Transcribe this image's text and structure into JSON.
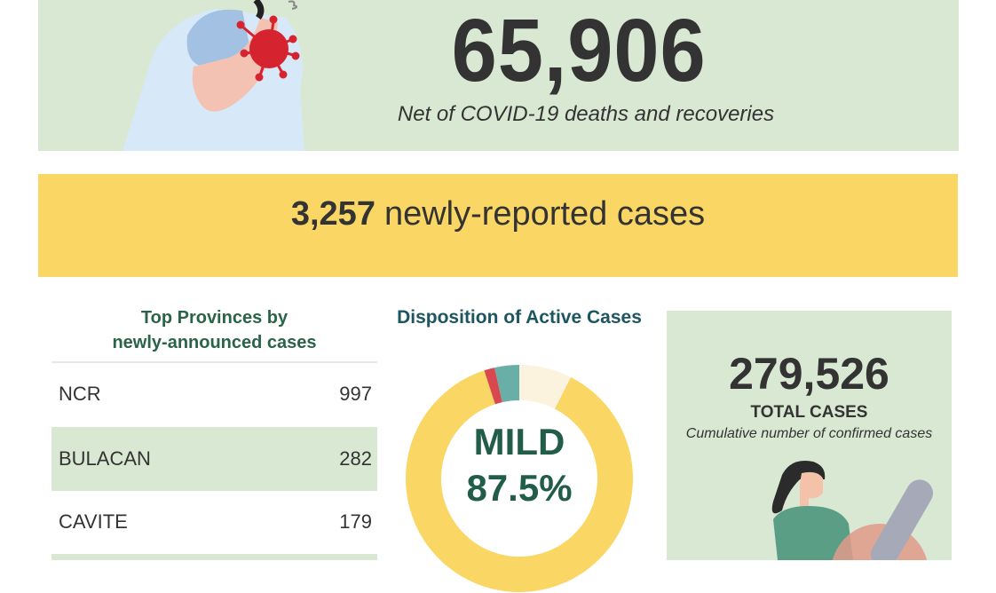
{
  "header": {
    "active_cases_value": "65,906",
    "active_cases_caption": "Net of COVID-19 deaths and recoveries"
  },
  "banner": {
    "new_cases_value": "3,257",
    "new_cases_label": "newly-reported cases"
  },
  "provinces": {
    "title_line1": "Top Provinces by",
    "title_line2": "newly-announced cases",
    "rows": [
      {
        "name": "NCR",
        "value": "997"
      },
      {
        "name": "BULACAN",
        "value": "282"
      },
      {
        "name": "CAVITE",
        "value": "179"
      }
    ]
  },
  "disposition": {
    "title": "Disposition of Active Cases",
    "center_label": "MILD",
    "center_value": "87.5%"
  },
  "totals": {
    "value": "279,526",
    "label": "TOTAL CASES",
    "caption": "Cumulative number of confirmed cases"
  },
  "colors": {
    "panel_green": "#d9e8d2",
    "banner_yellow": "#fad664",
    "title_green": "#2a6448",
    "mild_yellow": "#fad664",
    "segment_cream": "#fcf3de",
    "segment_red": "#d9474f",
    "segment_teal": "#6aaea8"
  },
  "chart_data": {
    "type": "pie",
    "title": "Disposition of Active Cases",
    "donut": true,
    "slices": [
      {
        "label": "MILD",
        "value": 87.5,
        "color": "#fad664"
      },
      {
        "label": "",
        "value": 7.5,
        "color": "#fcf3de"
      },
      {
        "label": "",
        "value": 1.5,
        "color": "#d9474f"
      },
      {
        "label": "",
        "value": 3.5,
        "color": "#6aaea8"
      }
    ]
  }
}
